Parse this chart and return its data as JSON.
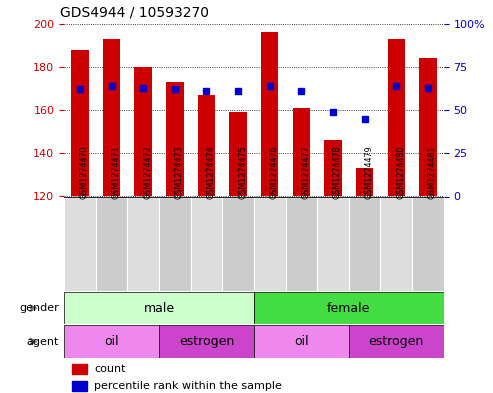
{
  "title": "GDS4944 / 10593270",
  "samples": [
    "GSM1274470",
    "GSM1274471",
    "GSM1274472",
    "GSM1274473",
    "GSM1274474",
    "GSM1274475",
    "GSM1274476",
    "GSM1274477",
    "GSM1274478",
    "GSM1274479",
    "GSM1274480",
    "GSM1274481"
  ],
  "counts": [
    188,
    193,
    180,
    173,
    167,
    159,
    196,
    161,
    146,
    133,
    193,
    184
  ],
  "percentiles": [
    62,
    64,
    63,
    62,
    61,
    61,
    64,
    61,
    49,
    45,
    64,
    63
  ],
  "ylim_left": [
    120,
    200
  ],
  "ylim_right": [
    0,
    100
  ],
  "yticks_left": [
    120,
    140,
    160,
    180,
    200
  ],
  "ytick_labels_left": [
    "120",
    "140",
    "160",
    "180",
    "200"
  ],
  "ytick_labels_right": [
    "0",
    "25",
    "50",
    "75",
    "100%"
  ],
  "bar_color": "#cc0000",
  "dot_color": "#0000cc",
  "gender_male_light": "#ccffcc",
  "gender_female_bright": "#44dd44",
  "agent_oil_color": "#ee88ee",
  "agent_estrogen_color": "#cc44cc",
  "tick_color_left": "#cc0000",
  "tick_color_right": "#0000cc",
  "gender_groups": [
    {
      "label": "male",
      "start": 0,
      "end": 5,
      "color": "#ccffcc"
    },
    {
      "label": "female",
      "start": 6,
      "end": 11,
      "color": "#44dd44"
    }
  ],
  "agent_groups": [
    {
      "label": "oil",
      "start": 0,
      "end": 2,
      "color": "#ee88ee"
    },
    {
      "label": "estrogen",
      "start": 3,
      "end": 5,
      "color": "#cc44cc"
    },
    {
      "label": "oil",
      "start": 6,
      "end": 8,
      "color": "#ee88ee"
    },
    {
      "label": "estrogen",
      "start": 9,
      "end": 11,
      "color": "#cc44cc"
    }
  ]
}
